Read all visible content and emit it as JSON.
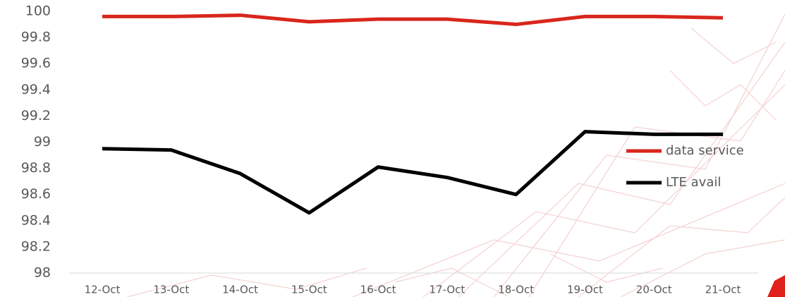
{
  "chart_data": {
    "type": "line",
    "categories": [
      "12-Oct",
      "13-Oct",
      "14-Oct",
      "15-Oct",
      "16-Oct",
      "17-Oct",
      "18-Oct",
      "19-Oct",
      "20-Oct",
      "21-Oct"
    ],
    "series": [
      {
        "name": "data service",
        "color": "#d9261c",
        "values": [
          99.96,
          99.96,
          99.97,
          99.92,
          99.94,
          99.94,
          99.9,
          99.96,
          99.96,
          99.95
        ]
      },
      {
        "name": "LTE avail",
        "color": "#000000",
        "values": [
          98.95,
          98.94,
          98.76,
          98.46,
          98.81,
          98.73,
          98.6,
          99.08,
          99.06,
          99.06
        ]
      }
    ],
    "ylim": [
      98,
      100
    ],
    "yticks": [
      98,
      98.2,
      98.4,
      98.6,
      98.8,
      99,
      99.2,
      99.4,
      99.6,
      99.8,
      100
    ],
    "legend": "right"
  }
}
